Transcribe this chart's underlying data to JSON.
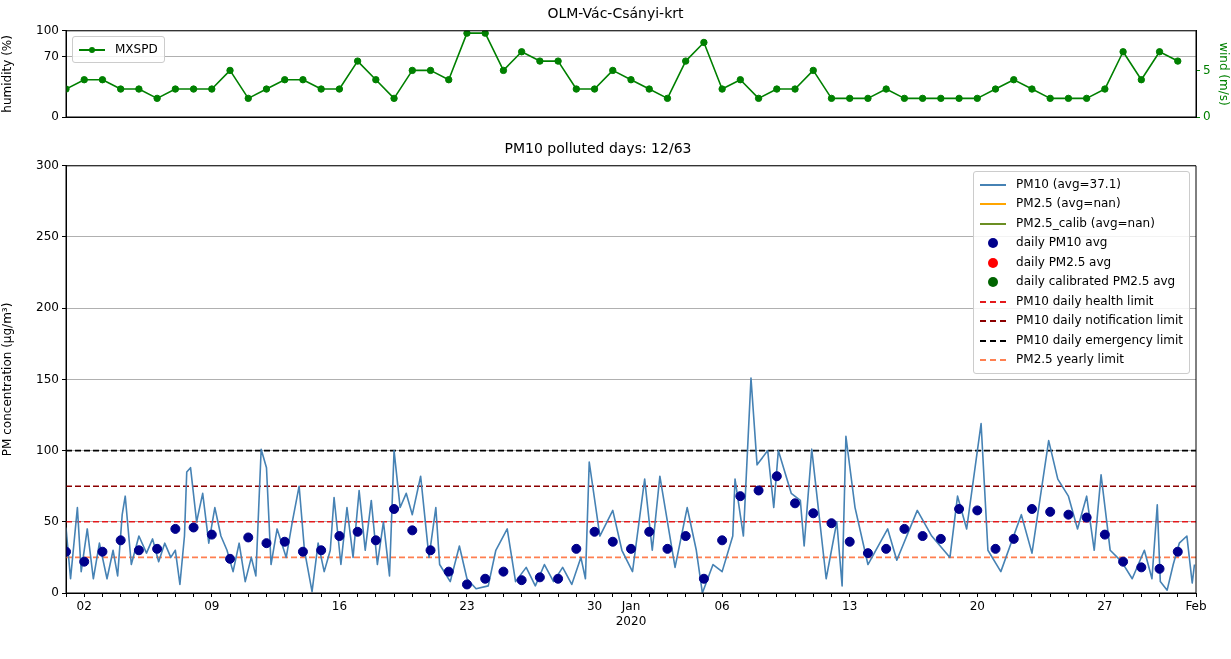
{
  "chart_data": [
    {
      "type": "line",
      "title": "OLM-Vác-Csányi-krt",
      "ylabel": "humidity (%)",
      "y2label": "wind (m/s)",
      "ylim": [
        0,
        100
      ],
      "yticks": [
        0,
        70,
        100
      ],
      "y2lim": [
        0,
        9.25
      ],
      "y2ticks": [
        0,
        5
      ],
      "xlim": [
        "2019-12-01",
        "2020-02-01"
      ],
      "grid": "y",
      "legend": "top left",
      "tick_labels": "y",
      "x": [
        "2019-12-01",
        "2019-12-02",
        "2019-12-03",
        "2019-12-04",
        "2019-12-05",
        "2019-12-06",
        "2019-12-07",
        "2019-12-08",
        "2019-12-09",
        "2019-12-10",
        "2019-12-11",
        "2019-12-12",
        "2019-12-13",
        "2019-12-14",
        "2019-12-15",
        "2019-12-16",
        "2019-12-17",
        "2019-12-18",
        "2019-12-19",
        "2019-12-20",
        "2019-12-21",
        "2019-12-22",
        "2019-12-23",
        "2019-12-24",
        "2019-12-25",
        "2019-12-26",
        "2019-12-27",
        "2019-12-28",
        "2019-12-29",
        "2019-12-30",
        "2019-12-31",
        "2020-01-01",
        "2020-01-02",
        "2020-01-03",
        "2020-01-04",
        "2020-01-05",
        "2020-01-06",
        "2020-01-07",
        "2020-01-08",
        "2020-01-09",
        "2020-01-10",
        "2020-01-11",
        "2020-01-12",
        "2020-01-13",
        "2020-01-14",
        "2020-01-15",
        "2020-01-16",
        "2020-01-17",
        "2020-01-18",
        "2020-01-19",
        "2020-01-20",
        "2020-01-21",
        "2020-01-22",
        "2020-01-23",
        "2020-01-24",
        "2020-01-25",
        "2020-01-26",
        "2020-01-27",
        "2020-01-28",
        "2020-01-29",
        "2020-01-30",
        "2020-01-31"
      ],
      "series": [
        {
          "name": "MXSPD",
          "color": "#008000",
          "axis": "y2",
          "marker": "circle",
          "values": [
            3,
            4,
            4,
            3,
            3,
            2,
            3,
            3,
            3,
            5,
            2,
            3,
            4,
            4,
            3,
            3,
            6,
            4,
            2,
            5,
            5,
            4,
            9,
            9,
            5,
            7,
            6,
            6,
            3,
            3,
            5,
            4,
            3,
            2,
            6,
            8,
            3,
            4,
            2,
            3,
            3,
            5,
            2,
            2,
            2,
            3,
            2,
            2,
            2,
            2,
            2,
            3,
            4,
            3,
            2,
            2,
            2,
            3,
            7,
            4,
            7,
            6
          ]
        }
      ]
    },
    {
      "type": "line",
      "title": "PM10 polluted days: 12/63",
      "ylabel": "PM concentration (µg/m³)",
      "ylim": [
        0,
        300
      ],
      "yticks": [
        0,
        50,
        100,
        150,
        200,
        250,
        300
      ],
      "xlim": [
        "2019-12-01",
        "2020-02-01"
      ],
      "grid": "y",
      "legend": "top right",
      "xticks": [
        {
          "value": "2019-12-01",
          "label": null
        },
        {
          "value": "2019-12-02",
          "label": "02"
        },
        {
          "value": "2019-12-03",
          "label": null
        },
        {
          "value": "2019-12-04",
          "label": null
        },
        {
          "value": "2019-12-05",
          "label": null
        },
        {
          "value": "2019-12-06",
          "label": null
        },
        {
          "value": "2019-12-07",
          "label": null
        },
        {
          "value": "2019-12-08",
          "label": null
        },
        {
          "value": "2019-12-09",
          "label": "09"
        },
        {
          "value": "2019-12-10",
          "label": null
        },
        {
          "value": "2019-12-11",
          "label": null
        },
        {
          "value": "2019-12-12",
          "label": null
        },
        {
          "value": "2019-12-13",
          "label": null
        },
        {
          "value": "2019-12-14",
          "label": null
        },
        {
          "value": "2019-12-15",
          "label": null
        },
        {
          "value": "2019-12-16",
          "label": "16"
        },
        {
          "value": "2019-12-17",
          "label": null
        },
        {
          "value": "2019-12-18",
          "label": null
        },
        {
          "value": "2019-12-19",
          "label": null
        },
        {
          "value": "2019-12-20",
          "label": null
        },
        {
          "value": "2019-12-21",
          "label": null
        },
        {
          "value": "2019-12-22",
          "label": null
        },
        {
          "value": "2019-12-23",
          "label": "23"
        },
        {
          "value": "2019-12-24",
          "label": null
        },
        {
          "value": "2019-12-25",
          "label": null
        },
        {
          "value": "2019-12-26",
          "label": null
        },
        {
          "value": "2019-12-27",
          "label": null
        },
        {
          "value": "2019-12-28",
          "label": null
        },
        {
          "value": "2019-12-29",
          "label": null
        },
        {
          "value": "2019-12-30",
          "label": "30"
        },
        {
          "value": "2019-12-31",
          "label": null
        },
        {
          "value": "2020-01-01",
          "label": "Jan\n2020"
        },
        {
          "value": "2020-01-02",
          "label": null
        },
        {
          "value": "2020-01-03",
          "label": null
        },
        {
          "value": "2020-01-04",
          "label": null
        },
        {
          "value": "2020-01-05",
          "label": null
        },
        {
          "value": "2020-01-06",
          "label": "06"
        },
        {
          "value": "2020-01-07",
          "label": null
        },
        {
          "value": "2020-01-08",
          "label": null
        },
        {
          "value": "2020-01-09",
          "label": null
        },
        {
          "value": "2020-01-10",
          "label": null
        },
        {
          "value": "2020-01-11",
          "label": null
        },
        {
          "value": "2020-01-12",
          "label": null
        },
        {
          "value": "2020-01-13",
          "label": "13"
        },
        {
          "value": "2020-01-14",
          "label": null
        },
        {
          "value": "2020-01-15",
          "label": null
        },
        {
          "value": "2020-01-16",
          "label": null
        },
        {
          "value": "2020-01-17",
          "label": null
        },
        {
          "value": "2020-01-18",
          "label": null
        },
        {
          "value": "2020-01-19",
          "label": null
        },
        {
          "value": "2020-01-20",
          "label": "20"
        },
        {
          "value": "2020-01-21",
          "label": null
        },
        {
          "value": "2020-01-22",
          "label": null
        },
        {
          "value": "2020-01-23",
          "label": null
        },
        {
          "value": "2020-01-24",
          "label": null
        },
        {
          "value": "2020-01-25",
          "label": null
        },
        {
          "value": "2020-01-26",
          "label": null
        },
        {
          "value": "2020-01-27",
          "label": "27"
        },
        {
          "value": "2020-01-28",
          "label": null
        },
        {
          "value": "2020-01-29",
          "label": null
        },
        {
          "value": "2020-01-30",
          "label": null
        },
        {
          "value": "2020-01-31",
          "label": null
        },
        {
          "value": "2020-02-01",
          "label": "Feb"
        }
      ],
      "x": [
        "2019-12-01",
        "2019-12-02",
        "2019-12-03",
        "2019-12-04",
        "2019-12-05",
        "2019-12-06",
        "2019-12-07",
        "2019-12-08",
        "2019-12-09",
        "2019-12-10",
        "2019-12-11",
        "2019-12-12",
        "2019-12-13",
        "2019-12-14",
        "2019-12-15",
        "2019-12-16",
        "2019-12-17",
        "2019-12-18",
        "2019-12-19",
        "2019-12-20",
        "2019-12-21",
        "2019-12-22",
        "2019-12-23",
        "2019-12-24",
        "2019-12-25",
        "2019-12-26",
        "2019-12-27",
        "2019-12-28",
        "2019-12-29",
        "2019-12-30",
        "2019-12-31",
        "2020-01-01",
        "2020-01-02",
        "2020-01-03",
        "2020-01-04",
        "2020-01-05",
        "2020-01-06",
        "2020-01-07",
        "2020-01-08",
        "2020-01-09",
        "2020-01-10",
        "2020-01-11",
        "2020-01-12",
        "2020-01-13",
        "2020-01-14",
        "2020-01-15",
        "2020-01-16",
        "2020-01-17",
        "2020-01-18",
        "2020-01-19",
        "2020-01-20",
        "2020-01-21",
        "2020-01-22",
        "2020-01-23",
        "2020-01-24",
        "2020-01-25",
        "2020-01-26",
        "2020-01-27",
        "2020-01-28",
        "2020-01-29",
        "2020-01-30",
        "2020-01-31"
      ],
      "series": [
        {
          "name": "PM10 (avg=37.1)",
          "color": "#4682b4",
          "x": [
            "2019-12-01T00:00",
            "2019-12-01T06:00",
            "2019-12-01T15:00",
            "2019-12-01T20:00",
            "2019-12-02T04:00",
            "2019-12-02T12:00",
            "2019-12-02T20:00",
            "2019-12-03T06:00",
            "2019-12-03T14:00",
            "2019-12-03T20:00",
            "2019-12-04T02:00",
            "2019-12-04T06:00",
            "2019-12-04T14:00",
            "2019-12-05T00:00",
            "2019-12-05T10:00",
            "2019-12-05T18:00",
            "2019-12-06T02:00",
            "2019-12-06T10:00",
            "2019-12-06T18:00",
            "2019-12-07T00:00",
            "2019-12-07T06:00",
            "2019-12-07T12:00",
            "2019-12-07T15:00",
            "2019-12-07T20:00",
            "2019-12-08T04:00",
            "2019-12-08T12:00",
            "2019-12-08T20:00",
            "2019-12-09T04:00",
            "2019-12-09T12:00",
            "2019-12-09T20:00",
            "2019-12-10T04:00",
            "2019-12-10T12:00",
            "2019-12-10T20:00",
            "2019-12-11T04:00",
            "2019-12-11T10:00",
            "2019-12-11T17:00",
            "2019-12-12T00:00",
            "2019-12-12T06:00",
            "2019-12-12T14:00",
            "2019-12-13T02:00",
            "2019-12-13T10:00",
            "2019-12-13T19:00",
            "2019-12-14T02:00",
            "2019-12-14T12:00",
            "2019-12-14T20:00",
            "2019-12-15T04:00",
            "2019-12-15T12:00",
            "2019-12-15T17:00",
            "2019-12-16T02:00",
            "2019-12-16T10:00",
            "2019-12-16T18:00",
            "2019-12-17T02:00",
            "2019-12-17T10:00",
            "2019-12-17T18:00",
            "2019-12-18T02:00",
            "2019-12-18T10:00",
            "2019-12-18T18:00",
            "2019-12-19T00:00",
            "2019-12-19T08:00",
            "2019-12-19T16:00",
            "2019-12-20T00:00",
            "2019-12-20T11:00",
            "2019-12-20T22:00",
            "2019-12-21T07:00",
            "2019-12-21T12:00",
            "2019-12-22T02:00",
            "2019-12-22T14:00",
            "2019-12-23T00:00",
            "2019-12-23T12:00",
            "2019-12-24T04:00",
            "2019-12-24T14:00",
            "2019-12-25T05:00",
            "2019-12-25T16:00",
            "2019-12-26T06:00",
            "2019-12-26T18:00",
            "2019-12-27T06:00",
            "2019-12-27T18:00",
            "2019-12-28T06:00",
            "2019-12-28T18:00",
            "2019-12-29T06:00",
            "2019-12-29T12:00",
            "2019-12-29T17:00",
            "2019-12-30T07:00",
            "2019-12-31T00:00",
            "2019-12-31T12:00",
            "2020-01-01T02:00",
            "2020-01-01T18:00",
            "2020-01-02T04:00",
            "2020-01-02T14:00",
            "2020-01-03T10:00",
            "2020-01-04T02:00",
            "2020-01-04T14:00",
            "2020-01-04T22:00",
            "2020-01-05T12:00",
            "2020-01-06T00:00",
            "2020-01-06T14:00",
            "2020-01-06T17:00",
            "2020-01-07T04:00",
            "2020-01-07T14:00",
            "2020-01-07T22:00",
            "2020-01-08T12:00",
            "2020-01-08T20:00",
            "2020-01-09T02:00",
            "2020-01-09T19:00",
            "2020-01-10T07:00",
            "2020-01-10T12:00",
            "2020-01-10T22:00",
            "2020-01-11T17:00",
            "2020-01-12T07:00",
            "2020-01-12T14:00",
            "2020-01-12T19:00",
            "2020-01-13T07:00",
            "2020-01-14T00:00",
            "2020-01-15T02:00",
            "2020-01-15T14:00",
            "2020-01-16T17:00",
            "2020-01-17T12:00",
            "2020-01-18T12:00",
            "2020-01-18T22:00",
            "2020-01-19T10:00",
            "2020-01-20T05:00",
            "2020-01-20T14:00",
            "2020-01-21T07:00",
            "2020-01-22T10:00",
            "2020-01-23T00:00",
            "2020-01-23T22:00",
            "2020-01-24T10:00",
            "2020-01-25T00:00",
            "2020-01-25T12:00",
            "2020-01-26T00:00",
            "2020-01-26T10:00",
            "2020-01-26T19:00",
            "2020-01-27T07:00",
            "2020-01-27T22:00",
            "2020-01-28T12:00",
            "2020-01-29T04:00",
            "2020-01-29T14:00",
            "2020-01-29T21:00",
            "2020-01-30T01:00",
            "2020-01-30T10:00",
            "2020-01-30T18:00",
            "2020-01-31T02:00",
            "2020-01-31T12:00",
            "2020-01-31T19:00",
            "2020-01-31T22:00"
          ],
          "values": [
            46,
            10,
            60,
            15,
            45,
            10,
            35,
            10,
            30,
            12,
            55,
            68,
            20,
            40,
            28,
            38,
            22,
            35,
            25,
            30,
            6,
            40,
            85,
            88,
            50,
            70,
            35,
            60,
            40,
            30,
            15,
            35,
            8,
            25,
            12,
            101,
            88,
            20,
            45,
            25,
            50,
            75,
            30,
            1,
            35,
            15,
            30,
            67,
            20,
            60,
            25,
            72,
            30,
            65,
            20,
            50,
            12,
            100,
            60,
            70,
            55,
            82,
            25,
            60,
            20,
            8,
            33,
            10,
            3,
            5,
            30,
            45,
            8,
            18,
            5,
            20,
            8,
            18,
            6,
            25,
            10,
            92,
            40,
            58,
            30,
            15,
            80,
            30,
            82,
            18,
            60,
            30,
            0,
            20,
            15,
            40,
            80,
            40,
            151,
            90,
            100,
            60,
            100,
            70,
            65,
            33,
            101,
            10,
            50,
            5,
            110,
            60,
            20,
            45,
            23,
            58,
            40,
            25,
            68,
            45,
            119,
            30,
            15,
            55,
            28,
            107,
            80,
            68,
            45,
            68,
            30,
            83,
            30,
            22,
            10,
            30,
            10,
            62,
            8,
            2,
            20,
            35,
            40,
            7,
            20
          ]
        },
        {
          "name": "PM2.5 (avg=nan)",
          "color": "#ffa500",
          "values": [
            null,
            null,
            null,
            null,
            null,
            null,
            null,
            null,
            null,
            null,
            null,
            null,
            null,
            null,
            null,
            null,
            null,
            null,
            null,
            null,
            null,
            null,
            null,
            null,
            null,
            null,
            null,
            null,
            null,
            null,
            null,
            null,
            null,
            null,
            null,
            null,
            null,
            null,
            null,
            null,
            null,
            null,
            null,
            null,
            null,
            null,
            null,
            null,
            null,
            null,
            null,
            null,
            null,
            null,
            null,
            null,
            null,
            null,
            null,
            null,
            null,
            null
          ]
        },
        {
          "name": "PM2.5_calib (avg=nan)",
          "color": "#6b8e23",
          "values": [
            null,
            null,
            null,
            null,
            null,
            null,
            null,
            null,
            null,
            null,
            null,
            null,
            null,
            null,
            null,
            null,
            null,
            null,
            null,
            null,
            null,
            null,
            null,
            null,
            null,
            null,
            null,
            null,
            null,
            null,
            null,
            null,
            null,
            null,
            null,
            null,
            null,
            null,
            null,
            null,
            null,
            null,
            null,
            null,
            null,
            null,
            null,
            null,
            null,
            null,
            null,
            null,
            null,
            null,
            null,
            null,
            null,
            null,
            null,
            null,
            null,
            null
          ]
        },
        {
          "name": "daily PM10 avg",
          "type": "scatter",
          "marker": "circle",
          "color": "#00008b",
          "values": [
            29,
            22,
            29,
            37,
            30,
            31,
            45,
            46,
            41,
            24,
            39,
            35,
            36,
            29,
            30,
            40,
            43,
            37,
            59,
            44,
            30,
            15,
            6,
            10,
            15,
            9,
            11,
            10,
            31,
            43,
            36,
            31,
            43,
            31,
            40,
            10,
            37,
            68,
            72,
            82,
            63,
            56,
            49,
            36,
            28,
            31,
            45,
            40,
            38,
            59,
            58,
            31,
            38,
            59,
            57,
            55,
            53,
            41,
            22,
            18,
            17,
            29
          ]
        },
        {
          "name": "daily PM2.5 avg",
          "type": "scatter",
          "marker": "circle",
          "color": "#ff0000",
          "values": [
            null,
            null,
            null,
            null,
            null,
            null,
            null,
            null,
            null,
            null,
            null,
            null,
            null,
            null,
            null,
            null,
            null,
            null,
            null,
            null,
            null,
            null,
            null,
            null,
            null,
            null,
            null,
            null,
            null,
            null,
            null,
            null,
            null,
            null,
            null,
            null,
            null,
            null,
            null,
            null,
            null,
            null,
            null,
            null,
            null,
            null,
            null,
            null,
            null,
            null,
            null,
            null,
            null,
            null,
            null,
            null,
            null,
            null,
            null,
            null,
            null,
            null
          ]
        },
        {
          "name": "daily calibrated PM2.5 avg",
          "type": "scatter",
          "marker": "circle",
          "color": "#006400",
          "values": [
            null,
            null,
            null,
            null,
            null,
            null,
            null,
            null,
            null,
            null,
            null,
            null,
            null,
            null,
            null,
            null,
            null,
            null,
            null,
            null,
            null,
            null,
            null,
            null,
            null,
            null,
            null,
            null,
            null,
            null,
            null,
            null,
            null,
            null,
            null,
            null,
            null,
            null,
            null,
            null,
            null,
            null,
            null,
            null,
            null,
            null,
            null,
            null,
            null,
            null,
            null,
            null,
            null,
            null,
            null,
            null,
            null,
            null,
            null,
            null,
            null,
            null
          ]
        }
      ],
      "ref_lines": [
        {
          "axis": "y",
          "value": 50,
          "label": "PM10 daily health limit",
          "color": "#e41a1c",
          "line_style": "dashed"
        },
        {
          "axis": "y",
          "value": 75,
          "label": "PM10 daily notification limit",
          "color": "#8b0000",
          "line_style": "dashed"
        },
        {
          "axis": "y",
          "value": 100,
          "label": "PM10 daily emergency limit",
          "color": "#000000",
          "line_style": "dashed"
        },
        {
          "axis": "y",
          "value": 25,
          "label": "PM2.5 yearly limit",
          "color": "#ff7f50",
          "line_style": "dashed"
        }
      ]
    }
  ]
}
